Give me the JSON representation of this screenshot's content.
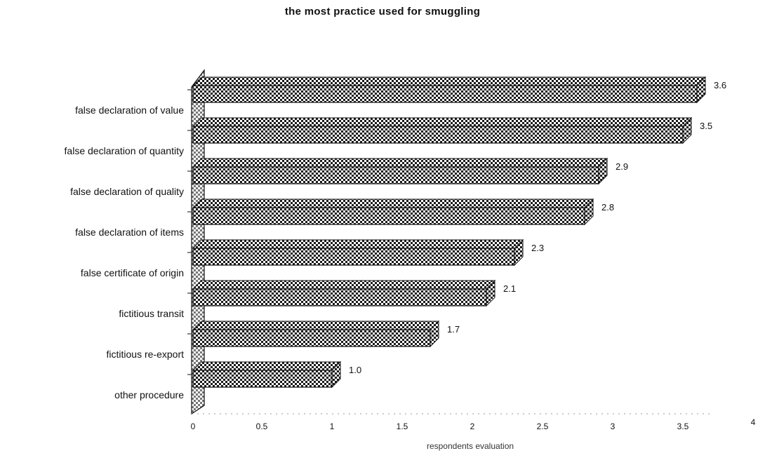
{
  "chart_data": {
    "type": "bar",
    "orientation": "horizontal",
    "title": "the most practice used for smuggling",
    "xlabel": "respondents evaluation",
    "ylabel": "",
    "xlim": [
      0,
      4
    ],
    "x_ticks": [
      "0",
      "0.5",
      "1",
      "1.5",
      "2",
      "2.5",
      "3",
      "3.5",
      "4"
    ],
    "grid": false,
    "legend": "none",
    "categories": [
      "false declaration of value",
      "false declaration of quantity",
      "false declaration of quality",
      "false declaration of items",
      "false certificate of origin",
      "fictitious transit",
      "fictitious re-export",
      "other procedure"
    ],
    "values": [
      3.6,
      3.5,
      2.9,
      2.8,
      2.3,
      2.1,
      1.7,
      1.0
    ],
    "value_labels": [
      "3.6",
      "3.5",
      "2.9",
      "2.8",
      "2.3",
      "2.1",
      "1.7",
      "1.0"
    ],
    "bar_color": "#1a1a1a",
    "pattern": "checkered"
  }
}
